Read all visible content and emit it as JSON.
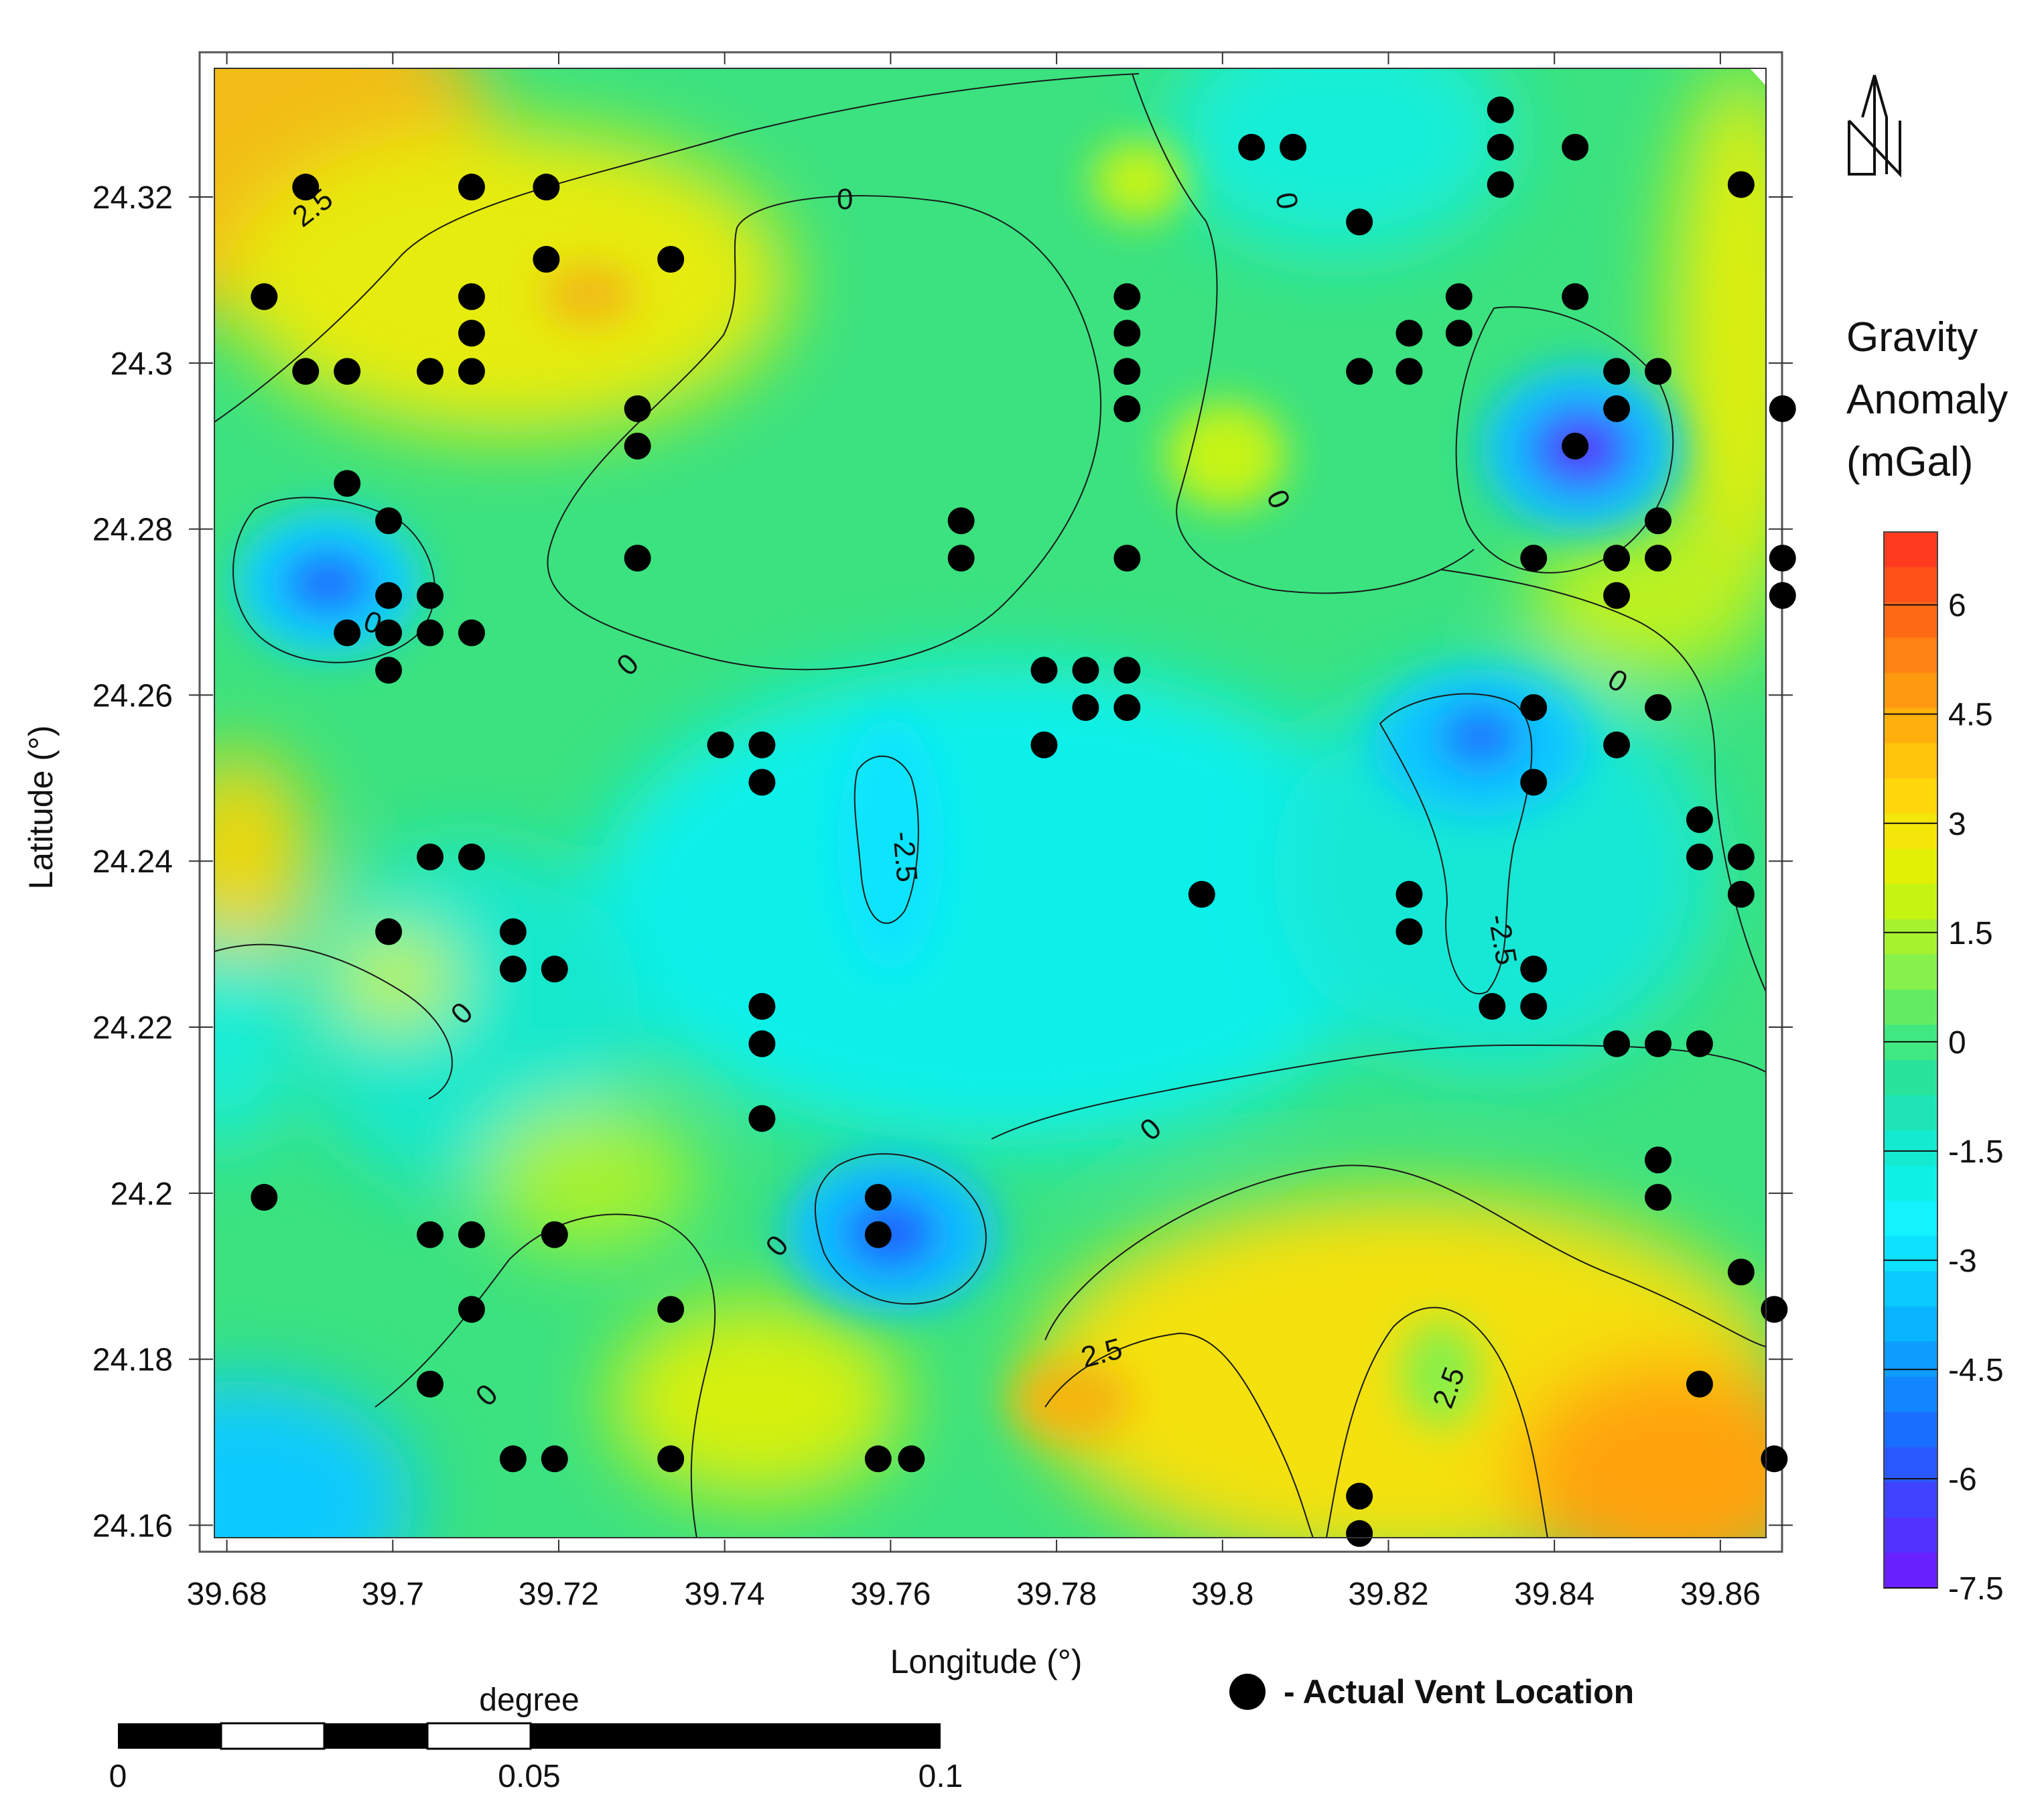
{
  "map": {
    "x_axis_title": "Longitude (°)",
    "y_axis_title": "Latitude (°)",
    "x_ticks": [
      "39.68",
      "39.7",
      "39.72",
      "39.74",
      "39.76",
      "39.78",
      "39.8",
      "39.82",
      "39.84",
      "39.86"
    ],
    "y_ticks": [
      "24.32",
      "24.3",
      "24.28",
      "24.26",
      "24.24",
      "24.22",
      "24.2",
      "24.18",
      "24.16"
    ],
    "x_range": [
      39.6785,
      39.8655
    ],
    "y_range": [
      24.1585,
      24.3355
    ],
    "contour_labels": [
      {
        "text": "2.5",
        "lon": 39.6905,
        "lat": 24.3185,
        "angle": -38
      },
      {
        "text": "0",
        "lon": 39.7545,
        "lat": 24.3195,
        "angle": 0
      },
      {
        "text": "0",
        "lon": 39.8075,
        "lat": 24.3195,
        "angle": 80
      },
      {
        "text": "0",
        "lon": 39.8475,
        "lat": 24.2985,
        "angle": 15
      },
      {
        "text": "0",
        "lon": 39.8065,
        "lat": 24.2835,
        "angle": 65
      },
      {
        "text": "0",
        "lon": 39.6975,
        "lat": 24.2685,
        "angle": 20
      },
      {
        "text": "0",
        "lon": 39.7285,
        "lat": 24.2635,
        "angle": -45
      },
      {
        "text": "0",
        "lon": 39.8475,
        "lat": 24.2615,
        "angle": 30
      },
      {
        "text": "-2.5",
        "lon": 39.7615,
        "lat": 24.2405,
        "angle": 85
      },
      {
        "text": "-2.5",
        "lon": 39.8335,
        "lat": 24.2305,
        "angle": 80
      },
      {
        "text": "0",
        "lon": 39.7085,
        "lat": 24.2215,
        "angle": -45
      },
      {
        "text": "0",
        "lon": 39.7915,
        "lat": 24.2075,
        "angle": -40
      },
      {
        "text": "0",
        "lon": 39.7465,
        "lat": 24.1935,
        "angle": -50
      },
      {
        "text": "2.5",
        "lon": 39.7855,
        "lat": 24.1805,
        "angle": -15
      },
      {
        "text": "2.5",
        "lon": 39.8275,
        "lat": 24.1765,
        "angle": -70
      },
      {
        "text": "0",
        "lon": 39.7115,
        "lat": 24.1755,
        "angle": -45
      }
    ],
    "vents": [
      [
        39.6895,
        24.3212
      ],
      [
        39.7095,
        24.3212
      ],
      [
        39.7185,
        24.3212
      ],
      [
        39.6845,
        24.308
      ],
      [
        39.7185,
        24.3125
      ],
      [
        39.7335,
        24.3125
      ],
      [
        39.7095,
        24.308
      ],
      [
        39.7095,
        24.3036
      ],
      [
        39.6895,
        24.299
      ],
      [
        39.6945,
        24.299
      ],
      [
        39.7045,
        24.299
      ],
      [
        39.7095,
        24.299
      ],
      [
        39.7295,
        24.2945
      ],
      [
        39.7295,
        24.29
      ],
      [
        39.6945,
        24.2855
      ],
      [
        39.6995,
        24.281
      ],
      [
        39.7295,
        24.2765
      ],
      [
        39.6995,
        24.272
      ],
      [
        39.7045,
        24.272
      ],
      [
        39.6945,
        24.2675
      ],
      [
        39.6995,
        24.2675
      ],
      [
        39.7045,
        24.2675
      ],
      [
        39.7095,
        24.2675
      ],
      [
        39.6995,
        24.263
      ],
      [
        39.7045,
        24.2405
      ],
      [
        39.7095,
        24.2405
      ],
      [
        39.6995,
        24.2315
      ],
      [
        39.7145,
        24.2315
      ],
      [
        39.7145,
        24.227
      ],
      [
        39.7195,
        24.227
      ],
      [
        39.6845,
        24.1995
      ],
      [
        39.7045,
        24.195
      ],
      [
        39.7095,
        24.195
      ],
      [
        39.7195,
        24.195
      ],
      [
        39.7095,
        24.186
      ],
      [
        39.7335,
        24.186
      ],
      [
        39.7045,
        24.177
      ],
      [
        39.7145,
        24.168
      ],
      [
        39.7195,
        24.168
      ],
      [
        39.7335,
        24.168
      ],
      [
        39.7395,
        24.254
      ],
      [
        39.7445,
        24.254
      ],
      [
        39.7445,
        24.2495
      ],
      [
        39.7445,
        24.2225
      ],
      [
        39.7445,
        24.218
      ],
      [
        39.7445,
        24.209
      ],
      [
        39.7585,
        24.1995
      ],
      [
        39.7585,
        24.195
      ],
      [
        39.7585,
        24.168
      ],
      [
        39.7625,
        24.168
      ],
      [
        39.7685,
        24.281
      ],
      [
        39.7685,
        24.2765
      ],
      [
        39.7785,
        24.263
      ],
      [
        39.7835,
        24.263
      ],
      [
        39.7885,
        24.263
      ],
      [
        39.7835,
        24.2585
      ],
      [
        39.7885,
        24.2585
      ],
      [
        39.7785,
        24.254
      ],
      [
        39.7885,
        24.308
      ],
      [
        39.7885,
        24.3036
      ],
      [
        39.7885,
        24.299
      ],
      [
        39.7885,
        24.2945
      ],
      [
        39.7885,
        24.2765
      ],
      [
        39.7975,
        24.236
      ],
      [
        39.8035,
        24.326
      ],
      [
        39.8085,
        24.326
      ],
      [
        39.8165,
        24.317
      ],
      [
        39.8165,
        24.299
      ],
      [
        39.8225,
        24.3036
      ],
      [
        39.8225,
        24.299
      ],
      [
        39.8285,
        24.308
      ],
      [
        39.8285,
        24.3036
      ],
      [
        39.8335,
        24.3305
      ],
      [
        39.8335,
        24.326
      ],
      [
        39.8335,
        24.3215
      ],
      [
        39.8425,
        24.326
      ],
      [
        39.8425,
        24.308
      ],
      [
        39.8475,
        24.299
      ],
      [
        39.8525,
        24.299
      ],
      [
        39.8475,
        24.2945
      ],
      [
        39.8425,
        24.29
      ],
      [
        39.8625,
        24.3215
      ],
      [
        39.8675,
        24.2945
      ],
      [
        39.8375,
        24.2765
      ],
      [
        39.8475,
        24.2765
      ],
      [
        39.8525,
        24.2765
      ],
      [
        39.8525,
        24.281
      ],
      [
        39.8475,
        24.272
      ],
      [
        39.8675,
        24.2765
      ],
      [
        39.8675,
        24.272
      ],
      [
        39.8375,
        24.2585
      ],
      [
        39.8525,
        24.2585
      ],
      [
        39.8475,
        24.254
      ],
      [
        39.8375,
        24.2495
      ],
      [
        39.8575,
        24.245
      ],
      [
        39.8575,
        24.2405
      ],
      [
        39.8625,
        24.2405
      ],
      [
        39.8625,
        24.236
      ],
      [
        39.8225,
        24.236
      ],
      [
        39.8225,
        24.2315
      ],
      [
        39.8375,
        24.227
      ],
      [
        39.8325,
        24.2225
      ],
      [
        39.8375,
        24.2225
      ],
      [
        39.8475,
        24.218
      ],
      [
        39.8525,
        24.218
      ],
      [
        39.8575,
        24.218
      ],
      [
        39.8525,
        24.204
      ],
      [
        39.8525,
        24.1995
      ],
      [
        39.8625,
        24.1905
      ],
      [
        39.8665,
        24.186
      ],
      [
        39.8575,
        24.177
      ],
      [
        39.8665,
        24.168
      ],
      [
        39.8165,
        24.1635
      ],
      [
        39.8165,
        24.159
      ]
    ]
  },
  "colorbar": {
    "title_lines": [
      "Gravity",
      "Anomaly",
      "(mGal)"
    ],
    "range": [
      -7.5,
      7
    ],
    "tick_labels": [
      "6",
      "4.5",
      "3",
      "1.5",
      "0",
      "-1.5",
      "-3",
      "-4.5",
      "-6",
      "-7.5"
    ],
    "colors_top_to_bottom": [
      "#ff3a1e",
      "#ff5219",
      "#ff6a15",
      "#ff8212",
      "#ff990f",
      "#ffb00c",
      "#ffc40b",
      "#ffd70b",
      "#f4e609",
      "#e2f006",
      "#c6f412",
      "#a6f22e",
      "#88f04a",
      "#63ec63",
      "#3fe880",
      "#2ae39b",
      "#1fe5b6",
      "#14ead0",
      "#0ef0e6",
      "#12f2ff",
      "#0ee0ff",
      "#0acbff",
      "#09b4ff",
      "#0c9dff",
      "#1286ff",
      "#1a6eff",
      "#2a58ff",
      "#3f43ff",
      "#5232ff",
      "#6820ff"
    ]
  },
  "north_arrow": {
    "label": "N"
  },
  "legend": {
    "label": "- Actual Vent Location"
  },
  "scalebar": {
    "title": "degree",
    "labels": [
      "0",
      "0.05",
      "0.1"
    ]
  }
}
